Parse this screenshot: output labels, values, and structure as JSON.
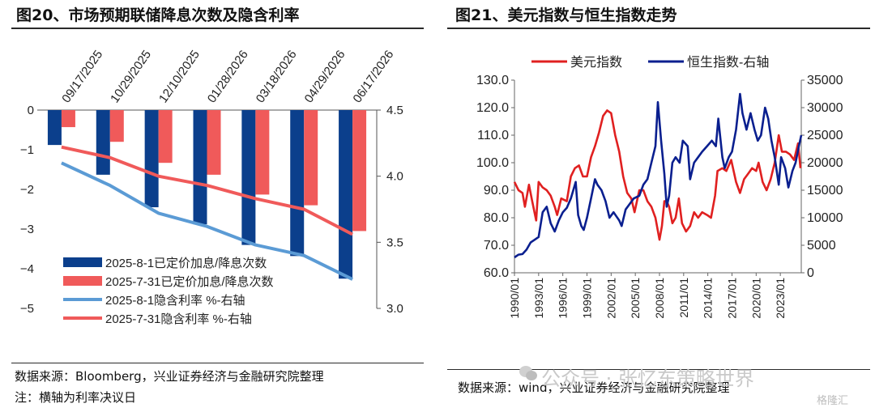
{
  "left": {
    "title": "图20、市场预期联储降息次数及隐含利率",
    "source": "数据来源：Bloomberg，兴业证券经济与金融研究院整理",
    "note": "注：横轴为利率决议日",
    "chart_data": {
      "type": "bar",
      "categories": [
        "09/17/2025",
        "10/29/2025",
        "12/10/2025",
        "01/28/2026",
        "03/18/2026",
        "04/29/2026",
        "06/17/2026"
      ],
      "series": [
        {
          "name": "2025-8-1已定价加息/降息次数",
          "kind": "bar",
          "axis": "left",
          "color": "#0b3f8c",
          "values": [
            -0.88,
            -1.63,
            -2.45,
            -2.88,
            -3.4,
            -3.68,
            -4.25
          ]
        },
        {
          "name": "2025-7-31已定价加息/降息次数",
          "kind": "bar",
          "axis": "left",
          "color": "#f05a5a",
          "values": [
            -0.43,
            -0.8,
            -1.33,
            -1.63,
            -2.13,
            -2.4,
            -3.05
          ]
        },
        {
          "name": "2025-8-1隐含利率 %-右轴",
          "kind": "line",
          "axis": "right",
          "color": "#5b9bd5",
          "values": [
            4.1,
            3.93,
            3.72,
            3.62,
            3.48,
            3.4,
            3.22
          ]
        },
        {
          "name": "2025-7-31隐含利率 %-右轴",
          "kind": "line",
          "axis": "right",
          "color": "#f05a5a",
          "values": [
            4.22,
            4.14,
            4.0,
            3.93,
            3.83,
            3.75,
            3.56
          ]
        }
      ],
      "ylim": [
        -5,
        0
      ],
      "yticks": [
        "0",
        "−1",
        "−2",
        "−3",
        "−4",
        "−5"
      ],
      "y2lim": [
        3.0,
        4.5
      ],
      "y2ticks": [
        "4.5",
        "4.0",
        "3.5",
        "3.0"
      ],
      "legend": "inside-lower-left"
    }
  },
  "right": {
    "title": "图21、美元指数与恒生指数走势",
    "source": "数据来源：wind，兴业证券经济与金融研究院整理",
    "chart_data": {
      "type": "line",
      "x_ticks": [
        "1990/01",
        "1993/01",
        "1996/01",
        "1999/01",
        "2002/01",
        "2005/01",
        "2008/01",
        "2011/01",
        "2014/01",
        "2017/01",
        "2020/01",
        "2023/01"
      ],
      "ylim": [
        60,
        130
      ],
      "yticks": [
        "130.0",
        "120.0",
        "110.0",
        "100.0",
        "90.0",
        "80.0",
        "70.0",
        "60.0"
      ],
      "y2lim": [
        0,
        35000
      ],
      "y2ticks": [
        "35000",
        "30000",
        "25000",
        "20000",
        "15000",
        "10000",
        "5000",
        "0"
      ],
      "legend": "top",
      "series": [
        {
          "name": "美元指数",
          "axis": "left",
          "color": "#e02020",
          "x": [
            1990.0,
            1990.5,
            1991.0,
            1991.3,
            1991.8,
            1992.2,
            1992.7,
            1993.0,
            1993.5,
            1994.0,
            1994.5,
            1995.0,
            1995.3,
            1995.8,
            1996.5,
            1997.0,
            1997.5,
            1998.0,
            1998.5,
            1999.0,
            1999.5,
            2000.0,
            2000.5,
            2001.0,
            2001.5,
            2002.0,
            2002.5,
            2003.0,
            2003.5,
            2004.0,
            2004.5,
            2004.9,
            2005.5,
            2006.0,
            2006.5,
            2007.0,
            2007.5,
            2008.0,
            2008.3,
            2008.6,
            2008.9,
            2009.2,
            2009.6,
            2010.0,
            2010.4,
            2010.8,
            2011.3,
            2011.8,
            2012.3,
            2012.8,
            2013.3,
            2013.9,
            2014.4,
            2014.9,
            2015.2,
            2015.8,
            2016.3,
            2016.9,
            2017.5,
            2018.0,
            2018.5,
            2019.0,
            2019.5,
            2020.0,
            2020.3,
            2020.8,
            2021.3,
            2021.8,
            2022.3,
            2022.8,
            2023.2,
            2023.7,
            2024.2,
            2024.7,
            2025.2,
            2025.5
          ],
          "y": [
            93,
            90,
            89,
            84,
            92,
            86,
            79,
            93,
            91,
            90,
            88,
            84,
            81,
            87,
            86,
            95,
            98,
            99,
            95,
            95,
            102,
            106,
            111,
            117,
            119,
            118,
            110,
            104,
            95,
            89,
            87,
            82,
            90,
            90,
            86,
            84,
            80,
            72,
            77,
            86,
            86,
            84,
            78,
            80,
            87,
            78,
            75,
            77,
            82,
            80,
            82,
            81,
            80,
            88,
            97,
            98,
            97,
            101,
            93,
            89,
            94,
            96,
            98,
            97,
            100,
            93,
            90,
            94,
            100,
            110,
            104,
            104,
            103,
            101,
            107,
            98
          ]
        },
        {
          "name": "恒生指数-右轴",
          "axis": "right",
          "color": "#0a1f8f",
          "x": [
            1990.0,
            1990.5,
            1991.0,
            1991.5,
            1992.0,
            1992.5,
            1993.0,
            1993.5,
            1994.0,
            1994.5,
            1995.0,
            1995.5,
            1996.0,
            1996.5,
            1997.0,
            1997.6,
            1997.9,
            1998.3,
            1998.6,
            1999.0,
            1999.5,
            2000.0,
            2000.3,
            2000.8,
            2001.3,
            2001.8,
            2002.3,
            2003.0,
            2003.3,
            2003.8,
            2004.3,
            2004.8,
            2005.5,
            2006.0,
            2006.5,
            2007.0,
            2007.5,
            2007.8,
            2008.2,
            2008.6,
            2008.9,
            2009.2,
            2009.6,
            2010.0,
            2010.5,
            2010.9,
            2011.5,
            2011.8,
            2012.3,
            2012.8,
            2013.3,
            2013.9,
            2014.5,
            2015.0,
            2015.3,
            2015.8,
            2016.1,
            2016.6,
            2017.0,
            2017.5,
            2018.0,
            2018.3,
            2018.8,
            2019.3,
            2019.8,
            2020.2,
            2020.6,
            2021.1,
            2021.5,
            2021.9,
            2022.3,
            2022.8,
            2023.1,
            2023.6,
            2024.0,
            2024.5,
            2024.9,
            2025.3,
            2025.6
          ],
          "y": [
            2800,
            3300,
            3400,
            4200,
            5500,
            6000,
            6500,
            11000,
            12000,
            9000,
            7500,
            9500,
            11000,
            11800,
            13500,
            16500,
            10500,
            8500,
            7800,
            10000,
            13500,
            17000,
            16000,
            15000,
            13000,
            10000,
            11000,
            9500,
            8500,
            11500,
            12500,
            13500,
            14000,
            16000,
            17000,
            20000,
            23000,
            31000,
            24000,
            18000,
            12000,
            14000,
            20000,
            21000,
            20000,
            24000,
            23000,
            17000,
            20000,
            21000,
            22000,
            23000,
            24000,
            23000,
            28000,
            21000,
            19000,
            21000,
            22000,
            26000,
            32500,
            29000,
            26000,
            29000,
            26000,
            24000,
            25000,
            30000,
            28000,
            24000,
            21000,
            16000,
            21000,
            19000,
            15500,
            18500,
            20000,
            23000,
            25000
          ]
        }
      ]
    }
  },
  "watermark": {
    "text": "公众号 · 张忆东策略世界",
    "corner": "格隆汇"
  }
}
